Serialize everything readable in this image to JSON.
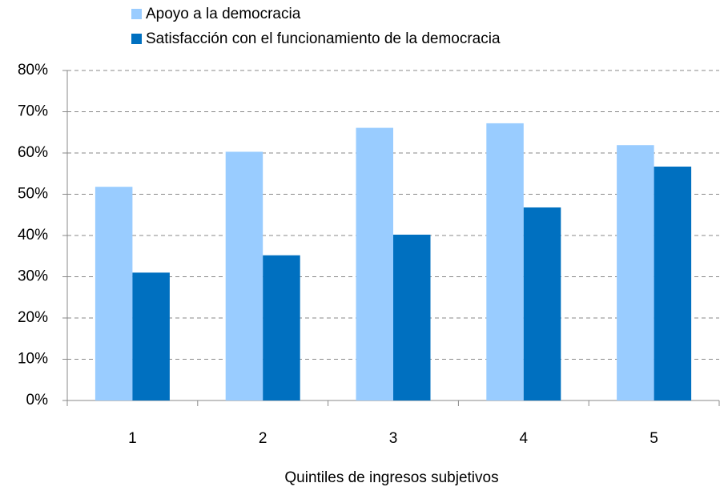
{
  "chart_data": {
    "type": "bar",
    "x_label": "Quintiles de ingresos subjetivos",
    "categories": [
      "1",
      "2",
      "3",
      "4",
      "5"
    ],
    "series": [
      {
        "name": "Apoyo a la democracia",
        "color": "#99ccff",
        "values": [
          51.8,
          60.3,
          66.1,
          67.2,
          61.9
        ]
      },
      {
        "name": "Satisfacción con el funcionamiento de la democracia",
        "color": "#0070c0",
        "values": [
          31.0,
          35.2,
          40.2,
          46.8,
          56.7
        ]
      }
    ],
    "ylim": [
      0,
      80
    ],
    "yticks": [
      {
        "value": 0,
        "label": "0%"
      },
      {
        "value": 10,
        "label": "10%"
      },
      {
        "value": 20,
        "label": "20%"
      },
      {
        "value": 30,
        "label": "30%"
      },
      {
        "value": 40,
        "label": "40%"
      },
      {
        "value": 50,
        "label": "50%"
      },
      {
        "value": 60,
        "label": "60%"
      },
      {
        "value": 70,
        "label": "70%"
      },
      {
        "value": 80,
        "label": "80%"
      }
    ],
    "grid": true
  }
}
